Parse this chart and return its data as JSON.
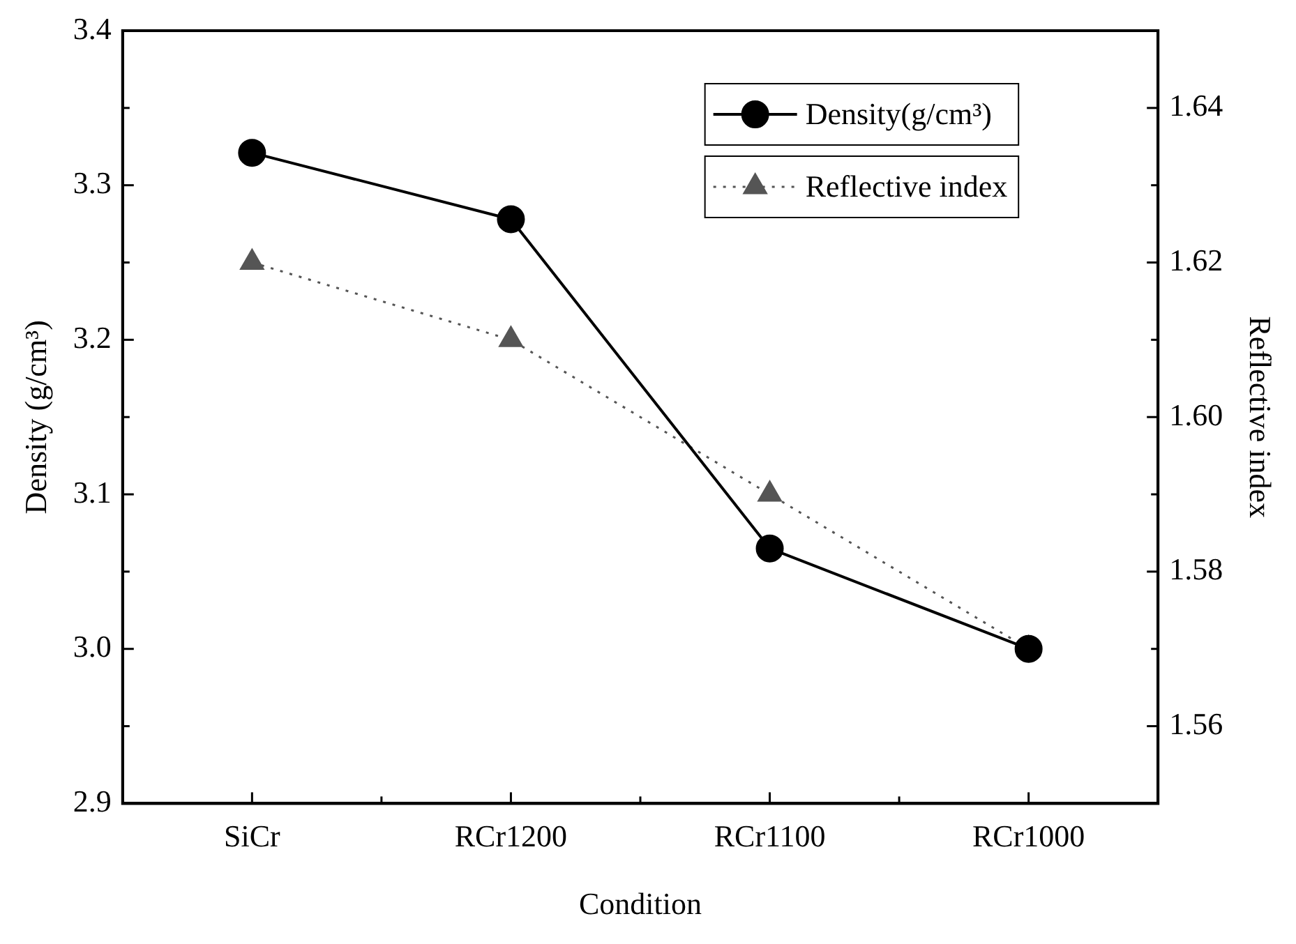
{
  "chart_data": {
    "type": "line",
    "xlabel": "Condition",
    "ylabel": "Density (g/cm³)",
    "y2label": "Reflective index",
    "categories": [
      "SiCr",
      "RCr1200",
      "RCr1100",
      "RCr1000"
    ],
    "series": [
      {
        "name": "Density(g/cm³)",
        "color": "#000000",
        "values": [
          3.321,
          3.278,
          3.065,
          3.0
        ],
        "marker": "circle",
        "line_style": "solid"
      },
      {
        "name": "Reflective index",
        "color": "#555555",
        "values": [
          1.62,
          1.61,
          1.59,
          1.57
        ],
        "axis": "y2",
        "marker": "triangle",
        "line_style": "dotted"
      }
    ],
    "ylim": [
      2.9,
      3.4
    ],
    "yticks": [
      {
        "value": 2.9,
        "label": "2.9"
      },
      {
        "value": 2.95,
        "label": null
      },
      {
        "value": 3.0,
        "label": "3.0"
      },
      {
        "value": 3.05,
        "label": null
      },
      {
        "value": 3.1,
        "label": "3.1"
      },
      {
        "value": 3.15,
        "label": null
      },
      {
        "value": 3.2,
        "label": "3.2"
      },
      {
        "value": 3.25,
        "label": null
      },
      {
        "value": 3.3,
        "label": "3.3"
      },
      {
        "value": 3.35,
        "label": null
      },
      {
        "value": 3.4,
        "label": "3.4"
      }
    ],
    "y2lim": [
      1.55,
      1.65
    ],
    "y2ticks": [
      {
        "value": 1.56,
        "label": "1.56"
      },
      {
        "value": 1.57,
        "label": null
      },
      {
        "value": 1.58,
        "label": "1.58"
      },
      {
        "value": 1.59,
        "label": null
      },
      {
        "value": 1.6,
        "label": "1.60"
      },
      {
        "value": 1.61,
        "label": null
      },
      {
        "value": 1.62,
        "label": "1.62"
      },
      {
        "value": 1.63,
        "label": null
      },
      {
        "value": 1.64,
        "label": "1.64"
      }
    ],
    "grid": false,
    "legend": "top right"
  }
}
